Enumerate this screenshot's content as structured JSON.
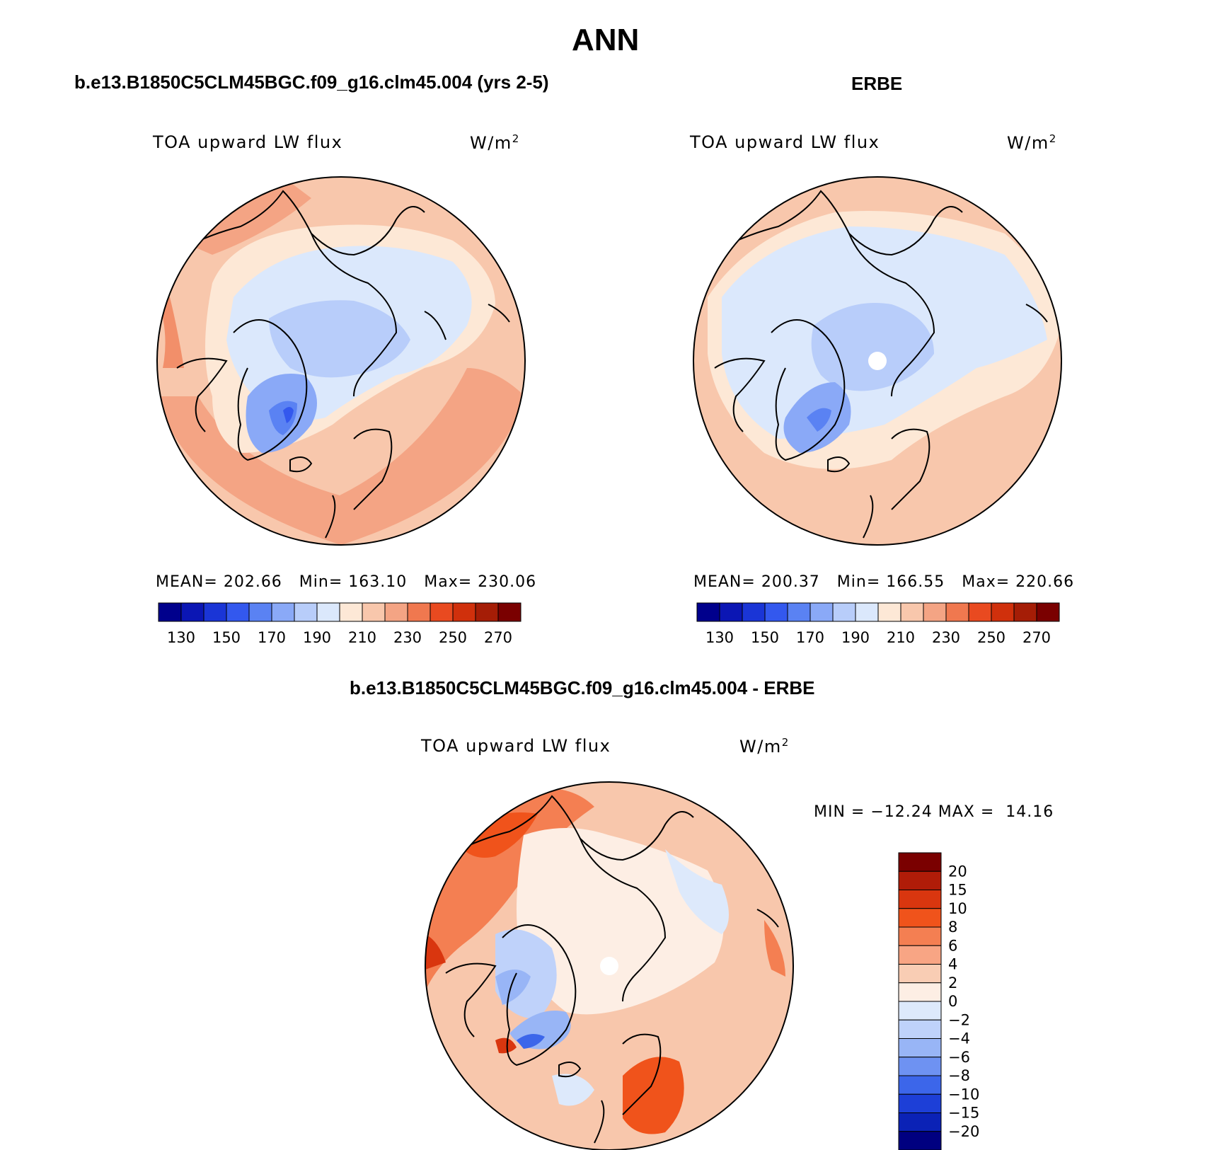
{
  "page_title": "ANN",
  "panels": [
    {
      "title": "b.e13.B1850C5CLM45BGC.f09_g16.clm45.004 (yrs 2-5)",
      "variable": "TOA upward LW flux",
      "units": "W/m",
      "units_sup": "2",
      "stats": {
        "mean_label": "MEAN=",
        "mean": "202.66",
        "min_label": "Min=",
        "min": "163.10",
        "max_label": "Max=",
        "max": "230.06"
      }
    },
    {
      "title": "ERBE",
      "variable": "TOA upward LW flux",
      "units": "W/m",
      "units_sup": "2",
      "stats": {
        "mean_label": "MEAN=",
        "mean": "200.37",
        "min_label": "Min=",
        "min": "166.55",
        "max_label": "Max=",
        "max": "220.66"
      }
    },
    {
      "title": "b.e13.B1850C5CLM45BGC.f09_g16.clm45.004 - ERBE",
      "variable": "TOA upward LW flux",
      "units": "W/m",
      "units_sup": "2",
      "stats": {
        "minmax_text": "MIN = −12.24 MAX =  14.16"
      }
    }
  ],
  "abs_colorbar": {
    "colors": [
      "#00008c",
      "#0b16b4",
      "#1a35d6",
      "#3358ee",
      "#5a82f3",
      "#8aa9f7",
      "#b8cdfa",
      "#dbe8fc",
      "#fde8d6",
      "#f8c7ac",
      "#f4a484",
      "#f0784f",
      "#e94a20",
      "#d0300c",
      "#a51d06",
      "#7a0000"
    ],
    "ticks": [
      "130",
      "150",
      "170",
      "190",
      "210",
      "230",
      "250",
      "270"
    ]
  },
  "diff_colorbar": {
    "colors": [
      "#7a0000",
      "#b01c08",
      "#d9360f",
      "#f0531b",
      "#f47f52",
      "#f8a584",
      "#f9cdb4",
      "#fdeee4",
      "#dde9fb",
      "#bfd2fa",
      "#98b5f6",
      "#6e92f2",
      "#3c66ea",
      "#1d3fd7",
      "#0b22b6",
      "#000080"
    ],
    "ticks": [
      "20",
      "15",
      "10",
      "8",
      "6",
      "4",
      "2",
      "0",
      "−2",
      "−4",
      "−6",
      "−8",
      "−10",
      "−15",
      "−20"
    ]
  },
  "chart_data": [
    {
      "type": "heatmap",
      "title": "b.e13.B1850C5CLM45BGC.f09_g16.clm45.004 (yrs 2-5)",
      "variable": "TOA upward LW flux",
      "units": "W/m2",
      "mean": 202.66,
      "min": 163.1,
      "max": 230.06,
      "levels": [
        130,
        140,
        150,
        160,
        170,
        180,
        190,
        200,
        210,
        220,
        230,
        240,
        250,
        260,
        270
      ]
    },
    {
      "type": "heatmap",
      "title": "ERBE",
      "variable": "TOA upward LW flux",
      "units": "W/m2",
      "mean": 200.37,
      "min": 166.55,
      "max": 220.66,
      "levels": [
        130,
        140,
        150,
        160,
        170,
        180,
        190,
        200,
        210,
        220,
        230,
        240,
        250,
        260,
        270
      ]
    },
    {
      "type": "heatmap",
      "title": "b.e13.B1850C5CLM45BGC.f09_g16.clm45.004 - ERBE",
      "variable": "TOA upward LW flux",
      "units": "W/m2",
      "min": -12.24,
      "max": 14.16,
      "levels": [
        -20,
        -15,
        -10,
        -8,
        -6,
        -4,
        -2,
        0,
        2,
        4,
        6,
        8,
        10,
        15,
        20
      ]
    }
  ]
}
